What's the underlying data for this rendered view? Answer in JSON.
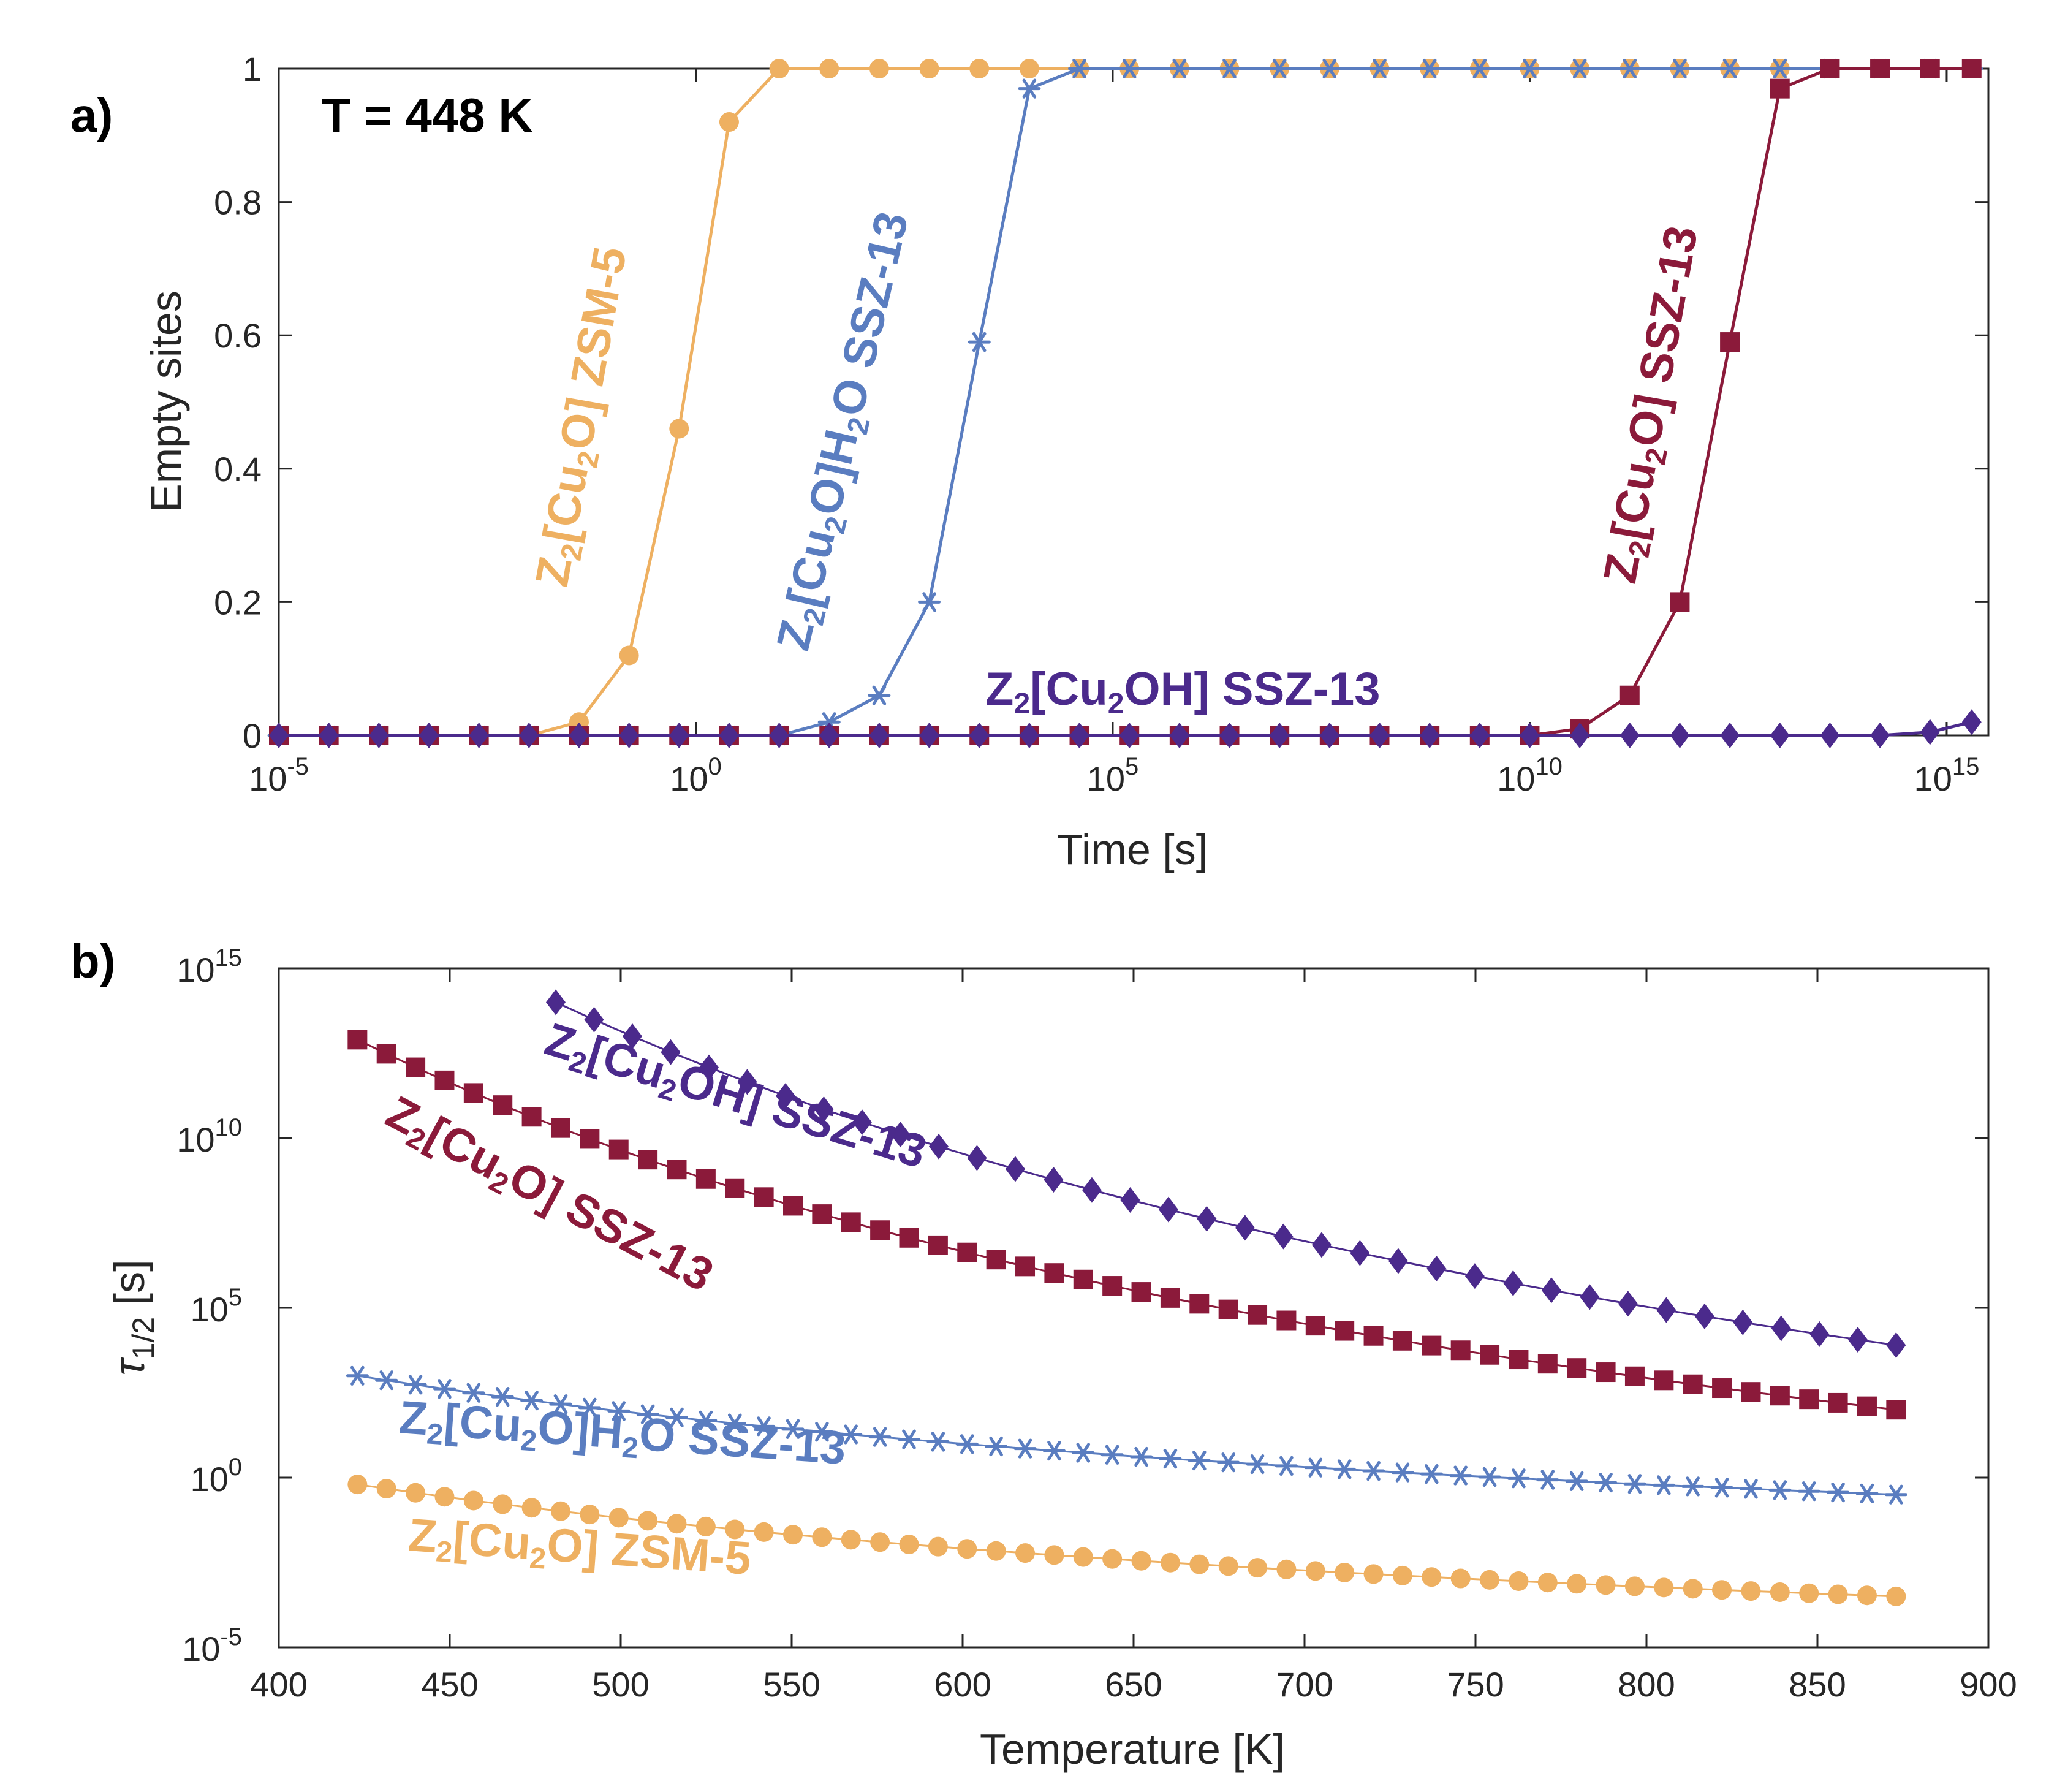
{
  "chart_data": [
    {
      "panel": "a)",
      "type": "line",
      "annotation": "T = 448 K",
      "xlabel": "Time [s]",
      "ylabel": "Empty sites",
      "xscale": "log",
      "xlim_log10": [
        -5,
        15.5
      ],
      "ylim": [
        0,
        1
      ],
      "xticks": [
        {
          "base": "10",
          "exp": "-5"
        },
        {
          "base": "10",
          "exp": "0"
        },
        {
          "base": "10",
          "exp": "5"
        },
        {
          "base": "10",
          "exp": "10"
        },
        {
          "base": "10",
          "exp": "15"
        }
      ],
      "yticks": [
        "0",
        "0.2",
        "0.4",
        "0.6",
        "0.8",
        "1"
      ],
      "series": [
        {
          "name": "Z2[Cu2O] ZSM-5",
          "color": "#eeb061",
          "marker": "circle",
          "x_log10": [
            -5,
            -4.4,
            -3.8,
            -3.2,
            -2.6,
            -2.0,
            -1.4,
            -0.8,
            -0.2,
            0.4,
            1.0,
            1.6,
            2.2,
            2.8,
            3.4,
            4.0,
            4.6,
            5.2,
            5.8,
            6.4,
            7.0,
            7.6,
            8.2,
            8.8,
            9.4,
            10.0,
            10.6,
            11.2,
            11.8,
            12.4,
            13.0,
            13.6,
            14.2,
            14.8,
            15.3
          ],
          "values": [
            0,
            0,
            0,
            0,
            0,
            0,
            0.02,
            0.12,
            0.46,
            0.92,
            1,
            1,
            1,
            1,
            1,
            1,
            1,
            1,
            1,
            1,
            1,
            1,
            1,
            1,
            1,
            1,
            1,
            1,
            1,
            1,
            1,
            1,
            1,
            1,
            1
          ]
        },
        {
          "name": "Z2[Cu2O]H2O SSZ-13",
          "color": "#5a7dc0",
          "marker": "star",
          "x_log10": [
            -5,
            -4.4,
            -3.8,
            -3.2,
            -2.6,
            -2.0,
            -1.4,
            -0.8,
            -0.2,
            0.4,
            1.0,
            1.6,
            2.2,
            2.8,
            3.4,
            4.0,
            4.6,
            5.2,
            5.8,
            6.4,
            7.0,
            7.6,
            8.2,
            8.8,
            9.4,
            10.0,
            10.6,
            11.2,
            11.8,
            12.4,
            13.0,
            13.6,
            14.2,
            14.8,
            15.3
          ],
          "values": [
            0,
            0,
            0,
            0,
            0,
            0,
            0,
            0,
            0,
            0,
            0,
            0.02,
            0.06,
            0.2,
            0.59,
            0.97,
            1,
            1,
            1,
            1,
            1,
            1,
            1,
            1,
            1,
            1,
            1,
            1,
            1,
            1,
            1,
            1,
            1,
            1,
            1
          ]
        },
        {
          "name": "Z2[Cu2O] SSZ-13",
          "color": "#8b1a3a",
          "marker": "square",
          "x_log10": [
            -5,
            -4.4,
            -3.8,
            -3.2,
            -2.6,
            -2.0,
            -1.4,
            -0.8,
            -0.2,
            0.4,
            1.0,
            1.6,
            2.2,
            2.8,
            3.4,
            4.0,
            4.6,
            5.2,
            5.8,
            6.4,
            7.0,
            7.6,
            8.2,
            8.8,
            9.4,
            10.0,
            10.6,
            11.2,
            11.8,
            12.4,
            13.0,
            13.6,
            14.2,
            14.8,
            15.3
          ],
          "values": [
            0,
            0,
            0,
            0,
            0,
            0,
            0,
            0,
            0,
            0,
            0,
            0,
            0,
            0,
            0,
            0,
            0,
            0,
            0,
            0,
            0,
            0,
            0,
            0,
            0,
            0,
            0.01,
            0.06,
            0.2,
            0.59,
            0.97,
            1,
            1,
            1,
            1
          ]
        },
        {
          "name": "Z2[Cu2OH] SSZ-13",
          "color": "#4b2a8c",
          "marker": "diamond",
          "x_log10": [
            -5,
            -4.4,
            -3.8,
            -3.2,
            -2.6,
            -2.0,
            -1.4,
            -0.8,
            -0.2,
            0.4,
            1.0,
            1.6,
            2.2,
            2.8,
            3.4,
            4.0,
            4.6,
            5.2,
            5.8,
            6.4,
            7.0,
            7.6,
            8.2,
            8.8,
            9.4,
            10.0,
            10.6,
            11.2,
            11.8,
            12.4,
            13.0,
            13.6,
            14.2,
            14.8,
            15.3
          ],
          "values": [
            0,
            0,
            0,
            0,
            0,
            0,
            0,
            0,
            0,
            0,
            0,
            0,
            0,
            0,
            0,
            0,
            0,
            0,
            0,
            0,
            0,
            0,
            0,
            0,
            0,
            0,
            0,
            0,
            0,
            0,
            0,
            0,
            0,
            0.005,
            0.02
          ]
        }
      ]
    },
    {
      "panel": "b)",
      "type": "line",
      "xlabel": "Temperature [K]",
      "ylabel": "τ1/2 [s]",
      "yscale": "log",
      "xlim": [
        400,
        900
      ],
      "ylim_log10": [
        -5,
        15
      ],
      "xticks": [
        "400",
        "450",
        "500",
        "550",
        "600",
        "650",
        "700",
        "750",
        "800",
        "850",
        "900"
      ],
      "yticks": [
        {
          "base": "10",
          "exp": "-5"
        },
        {
          "base": "10",
          "exp": "0"
        },
        {
          "base": "10",
          "exp": "5"
        },
        {
          "base": "10",
          "exp": "10"
        },
        {
          "base": "10",
          "exp": "15"
        }
      ],
      "series": [
        {
          "name": "Z2[Cu2OH] SSZ-13",
          "color": "#4b2a8c",
          "marker": "diamond",
          "x_range": [
            481,
            873
          ],
          "count": 36,
          "log10_endpoints": [
            14.0,
            3.9
          ]
        },
        {
          "name": "Z2[Cu2O] SSZ-13",
          "color": "#8b1a3a",
          "marker": "square",
          "x_range": [
            423,
            873
          ],
          "count": 54,
          "log10_endpoints": [
            12.9,
            2.0
          ]
        },
        {
          "name": "Z2[Cu2O]H2O SSZ-13",
          "color": "#5a7dc0",
          "marker": "star",
          "x_range": [
            423,
            873
          ],
          "count": 54,
          "log10_endpoints": [
            3.0,
            -0.5
          ]
        },
        {
          "name": "Z2[Cu2O] ZSM-5",
          "color": "#eeb061",
          "marker": "circle",
          "x_range": [
            423,
            873
          ],
          "count": 54,
          "log10_endpoints": [
            -0.2,
            -3.5
          ]
        }
      ]
    }
  ],
  "labels": {
    "a_zsm5": {
      "pre": "Z",
      "s1": "2",
      "mid": "[Cu",
      "s2": "2",
      "post": "O] ZSM-5"
    },
    "a_h2o": {
      "pre": "Z",
      "s1": "2",
      "mid": "[Cu",
      "s2": "2",
      "post": "O]H",
      "s3": "2",
      "end": "O SSZ-13"
    },
    "a_cu2o": {
      "pre": "Z",
      "s1": "2",
      "mid": "[Cu",
      "s2": "2",
      "post": "O] SSZ-13"
    },
    "a_cu2oh": {
      "pre": "Z",
      "s1": "2",
      "mid": "[Cu",
      "s2": "2",
      "post": "OH] SSZ-13"
    },
    "b_cu2oh": {
      "pre": "Z",
      "s1": "2",
      "mid": "[Cu",
      "s2": "2",
      "post": "OH] SSZ-13"
    },
    "b_cu2o": {
      "pre": "Z",
      "s1": "2",
      "mid": "[Cu",
      "s2": "2",
      "post": "O] SSZ-13"
    },
    "b_h2o": {
      "pre": "Z",
      "s1": "2",
      "mid": "[Cu",
      "s2": "2",
      "post": "O]H",
      "s3": "2",
      "end": "O SSZ-13"
    },
    "b_zsm5": {
      "pre": "Z",
      "s1": "2",
      "mid": "[Cu",
      "s2": "2",
      "post": "O] ZSM-5"
    },
    "b_ylabel": {
      "tau": "τ",
      "sub": "1/2",
      "unit": " [s]"
    }
  }
}
